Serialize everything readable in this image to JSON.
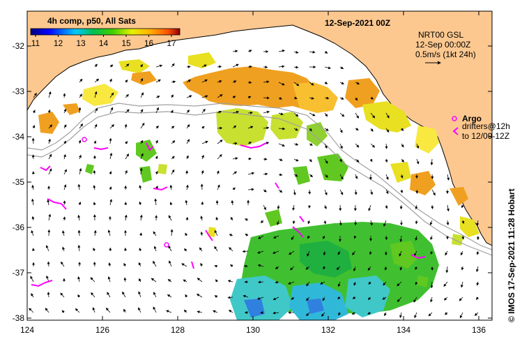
{
  "map": {
    "date_title": "12-Sep-2021 00Z",
    "product_label": "4h comp, p50, All Sats",
    "colorbar_ticks": [
      "11",
      "12",
      "13",
      "14",
      "15",
      "16",
      "17"
    ],
    "current_info_line1": "NRT00 GSL",
    "current_info_line2": "12-Sep 00:00Z",
    "current_info_line3": "0.5m/s (1kt 24h)",
    "legend_argo": "Argo",
    "legend_drifters_line1": "drifters@12h",
    "legend_drifters_line2": "to 12/09-12Z",
    "credit": "© IMOS 17-Sep-2021 11:28 Hobart",
    "lat_ticks": [
      "-32",
      "-33",
      "-34",
      "-35",
      "-36",
      "-37",
      "-38"
    ],
    "lon_ticks": [
      "124",
      "126",
      "128",
      "130",
      "132",
      "134",
      "136"
    ],
    "colors": {
      "land": "#fcc890",
      "ocean": "#ffffff",
      "argo": "#ff00ff",
      "drifter": "#ff00ff"
    }
  }
}
